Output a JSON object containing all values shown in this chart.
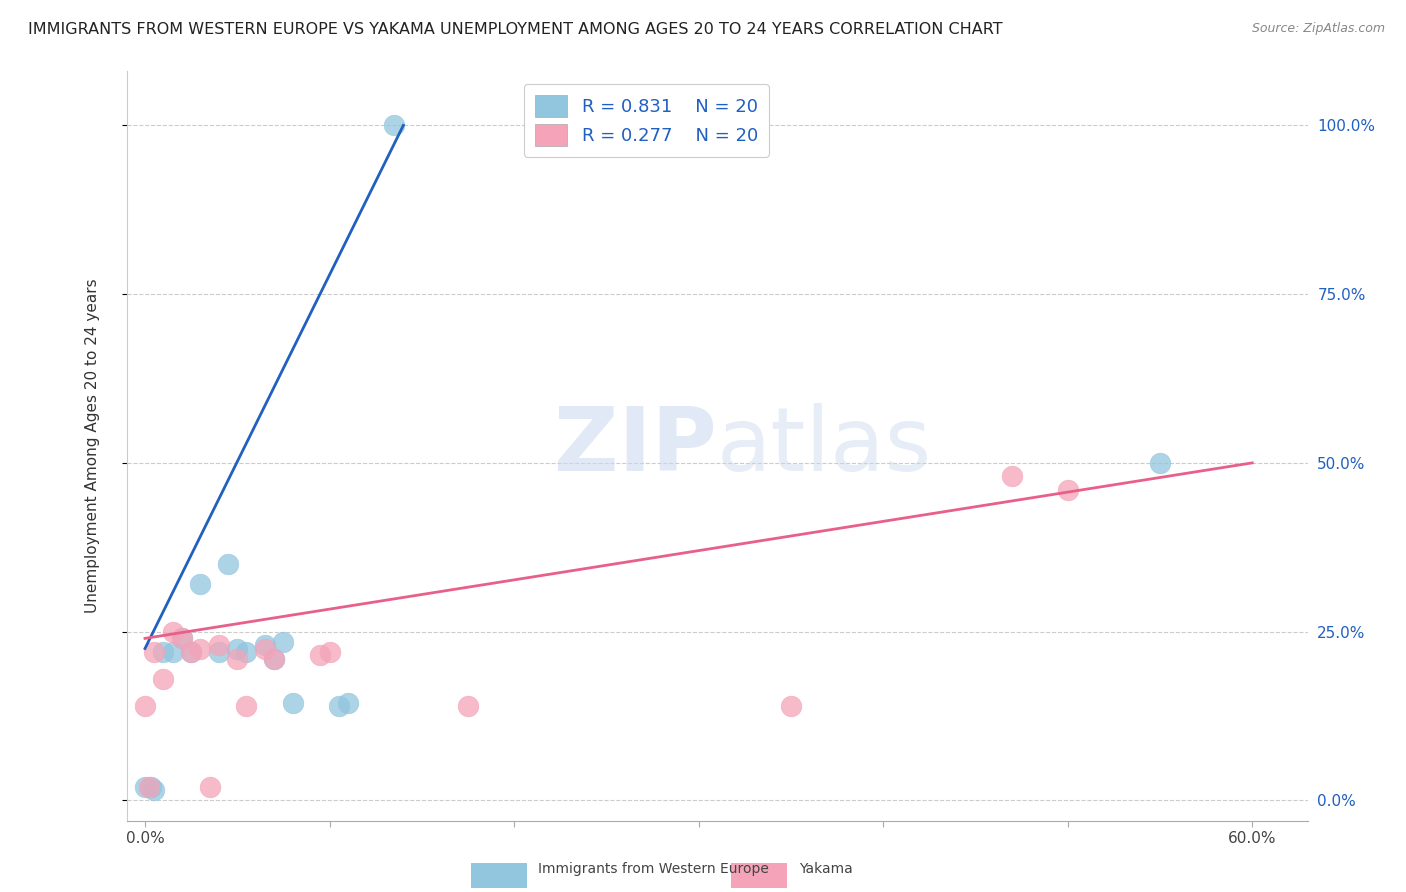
{
  "title": "IMMIGRANTS FROM WESTERN EUROPE VS YAKAMA UNEMPLOYMENT AMONG AGES 20 TO 24 YEARS CORRELATION CHART",
  "source": "Source: ZipAtlas.com",
  "ylabel_label": "Unemployment Among Ages 20 to 24 years",
  "legend_label1": "Immigrants from Western Europe",
  "legend_label2": "Yakama",
  "R1": 0.831,
  "N1": 20,
  "R2": 0.277,
  "N2": 20,
  "color_blue": "#92c5de",
  "color_pink": "#f4a3b8",
  "line_blue": "#2060c0",
  "line_pink": "#e8608a",
  "blue_x": [
    0.0,
    0.3,
    0.5,
    1.0,
    1.5,
    2.0,
    2.5,
    3.0,
    4.0,
    4.5,
    5.0,
    5.5,
    6.5,
    7.0,
    7.5,
    8.0,
    10.5,
    11.0,
    13.5,
    55.0
  ],
  "blue_y": [
    2.0,
    2.0,
    1.5,
    22.0,
    22.0,
    24.0,
    22.0,
    32.0,
    22.0,
    35.0,
    22.5,
    22.0,
    23.0,
    21.0,
    23.5,
    14.5,
    14.0,
    14.5,
    100.0,
    50.0
  ],
  "pink_x": [
    0.0,
    0.2,
    0.5,
    1.0,
    1.5,
    2.0,
    2.5,
    3.0,
    3.5,
    4.0,
    5.0,
    5.5,
    6.5,
    7.0,
    9.5,
    10.0,
    17.5,
    35.0,
    47.0,
    50.0
  ],
  "pink_y": [
    14.0,
    2.0,
    22.0,
    18.0,
    25.0,
    24.0,
    22.0,
    22.5,
    2.0,
    23.0,
    21.0,
    14.0,
    22.5,
    21.0,
    21.5,
    22.0,
    14.0,
    14.0,
    48.0,
    46.0
  ],
  "blue_line_x": [
    0.0,
    14.0
  ],
  "blue_line_y": [
    22.5,
    100.0
  ],
  "pink_line_x": [
    0.0,
    60.0
  ],
  "pink_line_y": [
    24.0,
    50.0
  ],
  "xlim": [
    -1,
    63
  ],
  "ylim": [
    -3,
    108
  ],
  "xticks": [
    0,
    10,
    20,
    30,
    40,
    50,
    60
  ],
  "xtick_labels_show": [
    "0.0%",
    "",
    "",
    "",
    "",
    "",
    "60.0%"
  ],
  "yticks": [
    0,
    25,
    50,
    75,
    100
  ],
  "ytick_labels": [
    "0.0%",
    "25.0%",
    "50.0%",
    "75.0%",
    "100.0%"
  ],
  "watermark_text": "ZIPatlas",
  "title_fontsize": 11.5,
  "source_fontsize": 9
}
